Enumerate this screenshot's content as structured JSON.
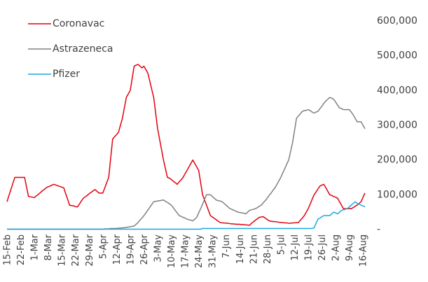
{
  "chart_data": {
    "type": "line",
    "categories": [
      "15-Feb",
      null,
      null,
      null,
      null,
      null,
      null,
      "22-Feb",
      null,
      null,
      null,
      null,
      null,
      null,
      "1-Mar",
      null,
      null,
      null,
      null,
      null,
      null,
      "8-Mar",
      null,
      null,
      null,
      null,
      null,
      null,
      "15-Mar",
      null,
      null,
      null,
      null,
      null,
      null,
      "22-Mar",
      null,
      null,
      null,
      null,
      null,
      null,
      "29-Mar",
      null,
      null,
      null,
      null,
      null,
      null,
      "5-Apr",
      null,
      null,
      null,
      null,
      null,
      null,
      "12-Apr",
      null,
      null,
      null,
      null,
      null,
      null,
      "19-Apr",
      null,
      null,
      null,
      null,
      null,
      null,
      "26-Apr",
      null,
      null,
      null,
      null,
      null,
      null,
      "3-May",
      null,
      null,
      null,
      null,
      null,
      null,
      "10-May",
      null,
      null,
      null,
      null,
      null,
      null,
      "17-May",
      null,
      null,
      null,
      null,
      null,
      null,
      "24-May",
      null,
      null,
      null,
      null,
      null,
      null,
      "31-May",
      null,
      null,
      null,
      null,
      null,
      null,
      "7-Jun",
      null,
      null,
      null,
      null,
      null,
      null,
      "14-Jun",
      null,
      null,
      null,
      null,
      null,
      null,
      "21-Jun",
      null,
      null,
      null,
      null,
      null,
      null,
      "28-Jun",
      null,
      null,
      null,
      null,
      null,
      null,
      "5-Jul",
      null,
      null,
      null,
      null,
      null,
      null,
      "12-Jul",
      null,
      null,
      null,
      null,
      null,
      null,
      "19-Jul",
      null,
      null,
      null,
      null,
      null,
      null,
      "26-Jul",
      null,
      null,
      null,
      null,
      null,
      null,
      "2-Aug",
      null,
      null,
      null,
      null,
      null,
      null,
      "9-Aug",
      null,
      null,
      null,
      null,
      null,
      null,
      "16-Aug",
      null
    ],
    "series": [
      {
        "name": "Coronavac",
        "color": "#e3000f",
        "values": [
          80000,
          98000,
          115000,
          133000,
          150000,
          150000,
          150000,
          150000,
          150000,
          150000,
          122000,
          95000,
          94000,
          93000,
          92000,
          97000,
          101000,
          106000,
          111000,
          115000,
          120000,
          123000,
          125000,
          128000,
          130000,
          128000,
          126000,
          124000,
          122000,
          120000,
          103000,
          87000,
          70000,
          69000,
          68000,
          66000,
          65000,
          73000,
          82000,
          90000,
          94000,
          98000,
          103000,
          107000,
          111000,
          115000,
          110000,
          105000,
          105000,
          105000,
          120000,
          135000,
          150000,
          205000,
          260000,
          267000,
          273000,
          280000,
          300000,
          320000,
          350000,
          380000,
          390000,
          400000,
          435000,
          470000,
          473000,
          475000,
          470000,
          465000,
          470000,
          460000,
          450000,
          427000,
          403000,
          380000,
          335000,
          290000,
          260000,
          230000,
          200000,
          175000,
          150000,
          148000,
          144000,
          139000,
          135000,
          130000,
          137000,
          143000,
          150000,
          160000,
          170000,
          180000,
          190000,
          200000,
          190000,
          180000,
          170000,
          135000,
          100000,
          85000,
          70000,
          55000,
          40000,
          36000,
          32000,
          28000,
          24000,
          20000,
          19000,
          19000,
          18000,
          18000,
          17000,
          16000,
          16000,
          15000,
          15000,
          15000,
          14000,
          14000,
          13000,
          13000,
          12000,
          18000,
          22000,
          27000,
          31000,
          35000,
          36000,
          37000,
          33000,
          29000,
          25000,
          24000,
          23000,
          23000,
          22000,
          21000,
          20000,
          20000,
          19000,
          19000,
          18000,
          18000,
          19000,
          19000,
          20000,
          20000,
          27000,
          33000,
          40000,
          50000,
          60000,
          73000,
          87000,
          100000,
          108000,
          117000,
          125000,
          128000,
          130000,
          120000,
          110000,
          100000,
          98000,
          95000,
          93000,
          90000,
          80000,
          70000,
          60000,
          60000,
          60000,
          60000,
          60000,
          63000,
          67000,
          70000,
          75000,
          80000,
          93000,
          105000
        ]
      },
      {
        "name": "Astrazeneca",
        "color": "#808080",
        "values": [
          1000,
          1000,
          1000,
          1000,
          1000,
          1000,
          1000,
          1000,
          1000,
          1000,
          1000,
          1000,
          1000,
          1000,
          1000,
          1000,
          1000,
          1000,
          1000,
          1000,
          1000,
          1000,
          1000,
          1000,
          1000,
          1000,
          1000,
          1000,
          1000,
          1000,
          1000,
          1000,
          1000,
          1000,
          1000,
          1000,
          1000,
          1000,
          1000,
          1000,
          1000,
          1000,
          1000,
          1000,
          1000,
          1000,
          1000,
          1000,
          1000,
          1000,
          2000,
          2000,
          2000,
          3000,
          3000,
          3000,
          3000,
          4000,
          4000,
          5000,
          5000,
          6000,
          7000,
          8000,
          9000,
          10000,
          15000,
          20000,
          27000,
          33000,
          40000,
          48000,
          56000,
          64000,
          72000,
          80000,
          81000,
          82000,
          83000,
          84000,
          85000,
          81000,
          78000,
          74000,
          70000,
          63000,
          55000,
          48000,
          40000,
          38000,
          35000,
          33000,
          30000,
          28000,
          27000,
          25000,
          30000,
          35000,
          48000,
          60000,
          73000,
          87000,
          100000,
          100000,
          100000,
          95000,
          90000,
          85000,
          83000,
          82000,
          80000,
          75000,
          70000,
          65000,
          60000,
          58000,
          55000,
          53000,
          50000,
          49000,
          48000,
          47000,
          45000,
          50000,
          55000,
          57000,
          58000,
          60000,
          63000,
          67000,
          70000,
          77000,
          83000,
          90000,
          98000,
          105000,
          113000,
          120000,
          130000,
          140000,
          150000,
          163000,
          175000,
          188000,
          200000,
          225000,
          250000,
          285000,
          320000,
          327000,
          333000,
          340000,
          342000,
          343000,
          345000,
          342000,
          338000,
          335000,
          338000,
          340000,
          348000,
          355000,
          363000,
          370000,
          375000,
          380000,
          378000,
          375000,
          367000,
          358000,
          350000,
          348000,
          345000,
          345000,
          345000,
          345000,
          338000,
          330000,
          320000,
          310000,
          310000,
          310000,
          300000,
          290000
        ]
      },
      {
        "name": "Pfizer",
        "color": "#1ba8e0",
        "values": [
          1000,
          1000,
          1000,
          1000,
          1000,
          1000,
          1000,
          1000,
          1000,
          1000,
          1000,
          1000,
          1000,
          1000,
          1000,
          1000,
          1000,
          1000,
          1000,
          1000,
          1000,
          1000,
          1000,
          1000,
          1000,
          1000,
          1000,
          1000,
          1000,
          1000,
          1000,
          1000,
          1000,
          1000,
          1000,
          1000,
          1000,
          1000,
          1000,
          1000,
          1000,
          1000,
          1000,
          1000,
          1000,
          1000,
          1000,
          1000,
          1000,
          1000,
          1000,
          1000,
          1000,
          1000,
          1000,
          1000,
          1000,
          1000,
          1000,
          1000,
          1000,
          1000,
          1000,
          1000,
          1000,
          1000,
          1000,
          1000,
          1000,
          1000,
          1000,
          1000,
          1000,
          1000,
          1000,
          1000,
          1000,
          1000,
          1000,
          1000,
          1000,
          1000,
          1000,
          1000,
          1000,
          1000,
          1000,
          1000,
          1000,
          1000,
          1000,
          1000,
          1000,
          1000,
          1000,
          1000,
          1000,
          1000,
          1000,
          1000,
          3000,
          3000,
          3000,
          3000,
          3000,
          3000,
          3000,
          3000,
          3000,
          3000,
          3000,
          3000,
          3000,
          3000,
          3000,
          3000,
          3000,
          3000,
          3000,
          3000,
          3000,
          3000,
          3000,
          3000,
          3000,
          3000,
          3000,
          3000,
          3000,
          3000,
          3000,
          3000,
          3000,
          3000,
          3000,
          3000,
          3000,
          3000,
          3000,
          3000,
          3000,
          3000,
          3000,
          3000,
          3000,
          3000,
          3000,
          3000,
          3000,
          3000,
          3000,
          3000,
          3000,
          3000,
          3000,
          3000,
          3000,
          5000,
          18000,
          30000,
          33000,
          37000,
          40000,
          40000,
          40000,
          40000,
          45000,
          50000,
          48000,
          45000,
          50000,
          55000,
          57000,
          58000,
          60000,
          65000,
          70000,
          75000,
          80000,
          75000,
          73000,
          70000,
          68000,
          65000
        ]
      }
    ],
    "ylim": [
      0,
      600000
    ],
    "yticks": [
      {
        "value": 0,
        "label": "-"
      },
      {
        "value": 100000,
        "label": "100,000"
      },
      {
        "value": 200000,
        "label": "200,000"
      },
      {
        "value": 300000,
        "label": "300,000"
      },
      {
        "value": 400000,
        "label": "400,000"
      },
      {
        "value": 500000,
        "label": "500,000"
      },
      {
        "value": 600000,
        "label": "600,000"
      }
    ],
    "grid": false,
    "legend": "top-left",
    "y_axis_side": "right"
  }
}
